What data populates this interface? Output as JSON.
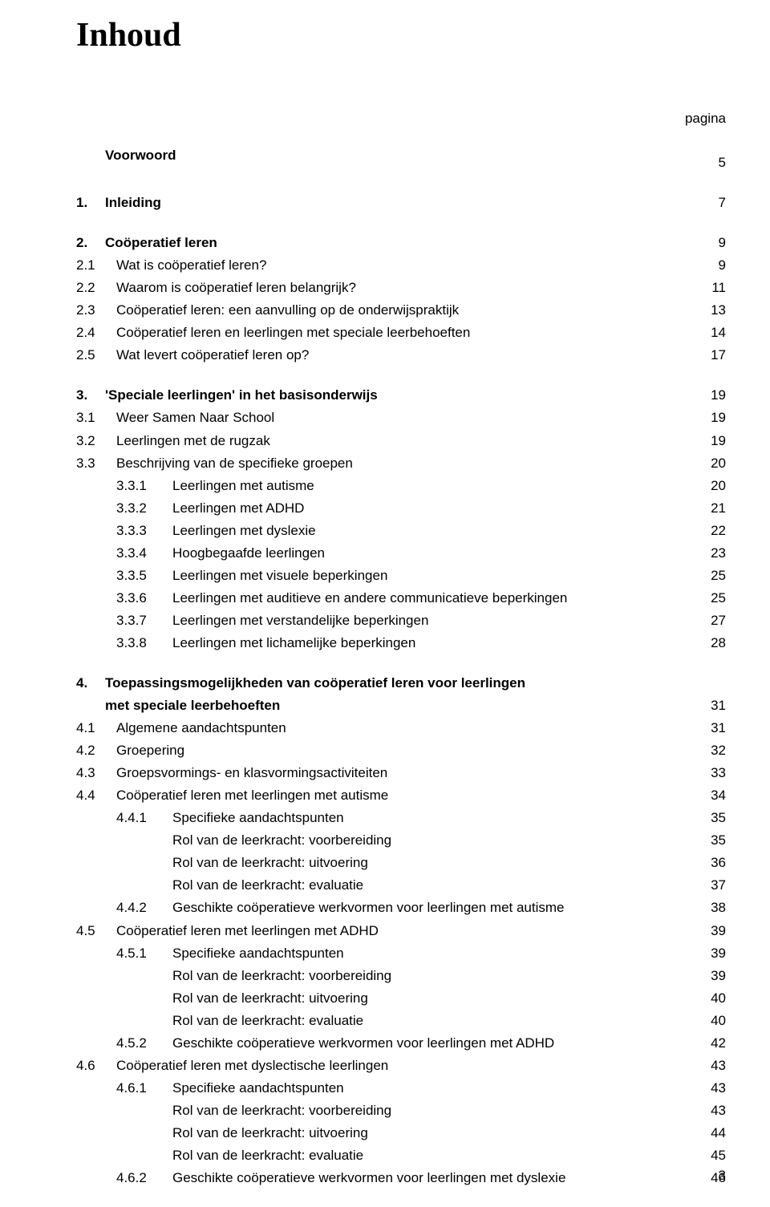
{
  "title": "Inhoud",
  "pagina_label": "pagina",
  "blocks": [
    [
      {
        "lvl": "top",
        "bold": true,
        "num": "",
        "text": "Voorwoord",
        "page": "5"
      }
    ],
    [
      {
        "lvl": "top",
        "bold": true,
        "num": "1.",
        "text": "Inleiding",
        "page": "7"
      }
    ],
    [
      {
        "lvl": "top",
        "bold": true,
        "num": "2.",
        "text": "Coöperatief leren",
        "page": "9"
      },
      {
        "lvl": "l1",
        "num": "2.1",
        "text": "Wat is coöperatief leren?",
        "page": "9"
      },
      {
        "lvl": "l1",
        "num": "2.2",
        "text": "Waarom is coöperatief leren belangrijk?",
        "page": "11"
      },
      {
        "lvl": "l1",
        "num": "2.3",
        "text": "Coöperatief leren: een aanvulling op de onderwijspraktijk",
        "page": "13"
      },
      {
        "lvl": "l1",
        "num": "2.4",
        "text": "Coöperatief leren en leerlingen met speciale leerbehoeften",
        "page": "14"
      },
      {
        "lvl": "l1",
        "num": "2.5",
        "text": "Wat levert coöperatief leren op?",
        "page": "17"
      }
    ],
    [
      {
        "lvl": "top",
        "bold": true,
        "num": "3.",
        "text": "'Speciale leerlingen' in het basisonderwijs",
        "page": "19"
      },
      {
        "lvl": "l1",
        "num": "3.1",
        "text": "Weer Samen Naar School",
        "page": "19"
      },
      {
        "lvl": "l1",
        "num": "3.2",
        "text": "Leerlingen met de rugzak",
        "page": "19"
      },
      {
        "lvl": "l1",
        "num": "3.3",
        "text": "Beschrijving van de specifieke groepen",
        "page": "20"
      },
      {
        "lvl": "l2",
        "num": "3.3.1",
        "text": "Leerlingen met autisme",
        "page": "20"
      },
      {
        "lvl": "l2",
        "num": "3.3.2",
        "text": "Leerlingen met ADHD",
        "page": "21"
      },
      {
        "lvl": "l2",
        "num": "3.3.3",
        "text": "Leerlingen met dyslexie",
        "page": "22"
      },
      {
        "lvl": "l2",
        "num": "3.3.4",
        "text": "Hoogbegaafde leerlingen",
        "page": "23"
      },
      {
        "lvl": "l2",
        "num": "3.3.5",
        "text": "Leerlingen met visuele beperkingen",
        "page": "25"
      },
      {
        "lvl": "l2",
        "num": "3.3.6",
        "text": "Leerlingen met auditieve en andere communicatieve beperkingen",
        "page": "25"
      },
      {
        "lvl": "l2",
        "num": "3.3.7",
        "text": "Leerlingen met verstandelijke beperkingen",
        "page": "27"
      },
      {
        "lvl": "l2",
        "num": "3.3.8",
        "text": "Leerlingen met lichamelijke beperkingen",
        "page": "28"
      }
    ],
    [
      {
        "lvl": "top",
        "bold": true,
        "num": "4.",
        "text": "Toepassingsmogelijkheden van coöperatief leren voor leerlingen",
        "page": ""
      },
      {
        "lvl": "topcont",
        "bold": true,
        "num": "",
        "text": "met speciale leerbehoeften",
        "page": "31"
      },
      {
        "lvl": "l1",
        "num": "4.1",
        "text": "Algemene aandachtspunten",
        "page": "31"
      },
      {
        "lvl": "l1",
        "num": "4.2",
        "text": "Groepering",
        "page": "32"
      },
      {
        "lvl": "l1",
        "num": "4.3",
        "text": "Groepsvormings- en klasvormingsactiviteiten",
        "page": "33"
      },
      {
        "lvl": "l1",
        "num": "4.4",
        "text": "Coöperatief leren met leerlingen met autisme",
        "page": "34"
      },
      {
        "lvl": "l2",
        "num": "4.4.1",
        "text": "Specifieke aandachtspunten",
        "page": "35"
      },
      {
        "lvl": "l2b",
        "num": "",
        "text": "Rol van de leerkracht: voorbereiding",
        "page": "35"
      },
      {
        "lvl": "l2b",
        "num": "",
        "text": "Rol van de leerkracht: uitvoering",
        "page": "36"
      },
      {
        "lvl": "l2b",
        "num": "",
        "text": "Rol van de leerkracht: evaluatie",
        "page": "37"
      },
      {
        "lvl": "l2",
        "num": "4.4.2",
        "text": "Geschikte coöperatieve werkvormen voor leerlingen met autisme",
        "page": "38"
      },
      {
        "lvl": "l1",
        "num": "4.5",
        "text": "Coöperatief leren met leerlingen met ADHD",
        "page": "39"
      },
      {
        "lvl": "l2",
        "num": "4.5.1",
        "text": "Specifieke aandachtspunten",
        "page": "39"
      },
      {
        "lvl": "l2b",
        "num": "",
        "text": "Rol van de leerkracht: voorbereiding",
        "page": "39"
      },
      {
        "lvl": "l2b",
        "num": "",
        "text": "Rol van de leerkracht: uitvoering",
        "page": "40"
      },
      {
        "lvl": "l2b",
        "num": "",
        "text": "Rol van de leerkracht: evaluatie",
        "page": "40"
      },
      {
        "lvl": "l2",
        "num": "4.5.2",
        "text": "Geschikte coöperatieve werkvormen voor leerlingen met ADHD",
        "page": "42"
      },
      {
        "lvl": "l1",
        "num": "4.6",
        "text": "Coöperatief leren met dyslectische leerlingen",
        "page": "43"
      },
      {
        "lvl": "l2",
        "num": "4.6.1",
        "text": "Specifieke aandachtspunten",
        "page": "43"
      },
      {
        "lvl": "l2b",
        "num": "",
        "text": "Rol van de leerkracht: voorbereiding",
        "page": "43"
      },
      {
        "lvl": "l2b",
        "num": "",
        "text": "Rol van de leerkracht: uitvoering",
        "page": "44"
      },
      {
        "lvl": "l2b",
        "num": "",
        "text": "Rol van de leerkracht: evaluatie",
        "page": "45"
      },
      {
        "lvl": "l2",
        "num": "4.6.2",
        "text": "Geschikte coöperatieve werkvormen voor leerlingen met dyslexie",
        "page": "46"
      }
    ]
  ],
  "footer_page": "3"
}
